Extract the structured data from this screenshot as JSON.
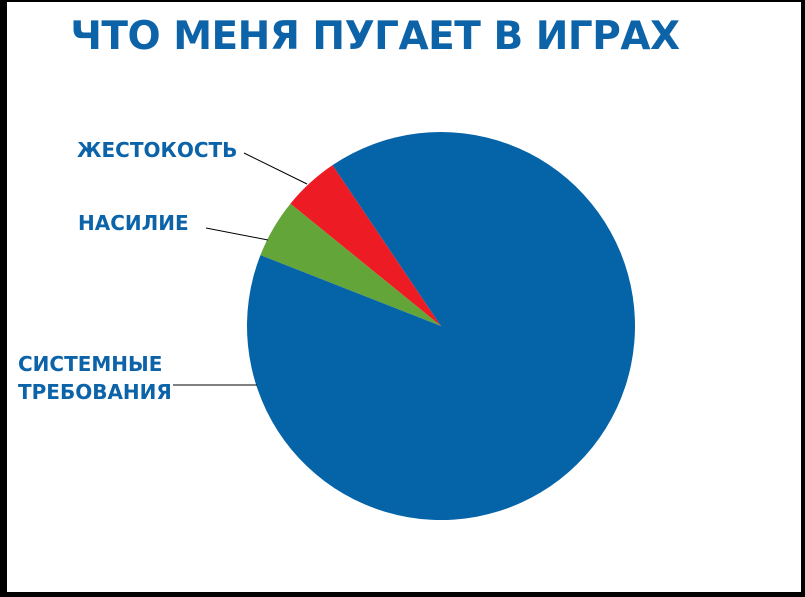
{
  "chart_data": {
    "type": "pie",
    "title": "ЧТО МЕНЯ ПУГАЕТ В ИГРАХ",
    "slices": [
      {
        "label": "ЖЕСТОКОСТЬ",
        "value": 4.7,
        "color": "#ed1c24"
      },
      {
        "label": "НАСИЛИЕ",
        "value": 4.9,
        "color": "#63a539"
      },
      {
        "label": "СИСТЕМНЫЕ ТРЕБОВАНИЯ",
        "label_lines": [
          "СИСТЕМНЫЕ",
          "ТРЕБОВАНИЯ"
        ],
        "value": 90.4,
        "color": "#0563a8"
      }
    ],
    "legend": "none",
    "label_style": "leader-lines"
  }
}
